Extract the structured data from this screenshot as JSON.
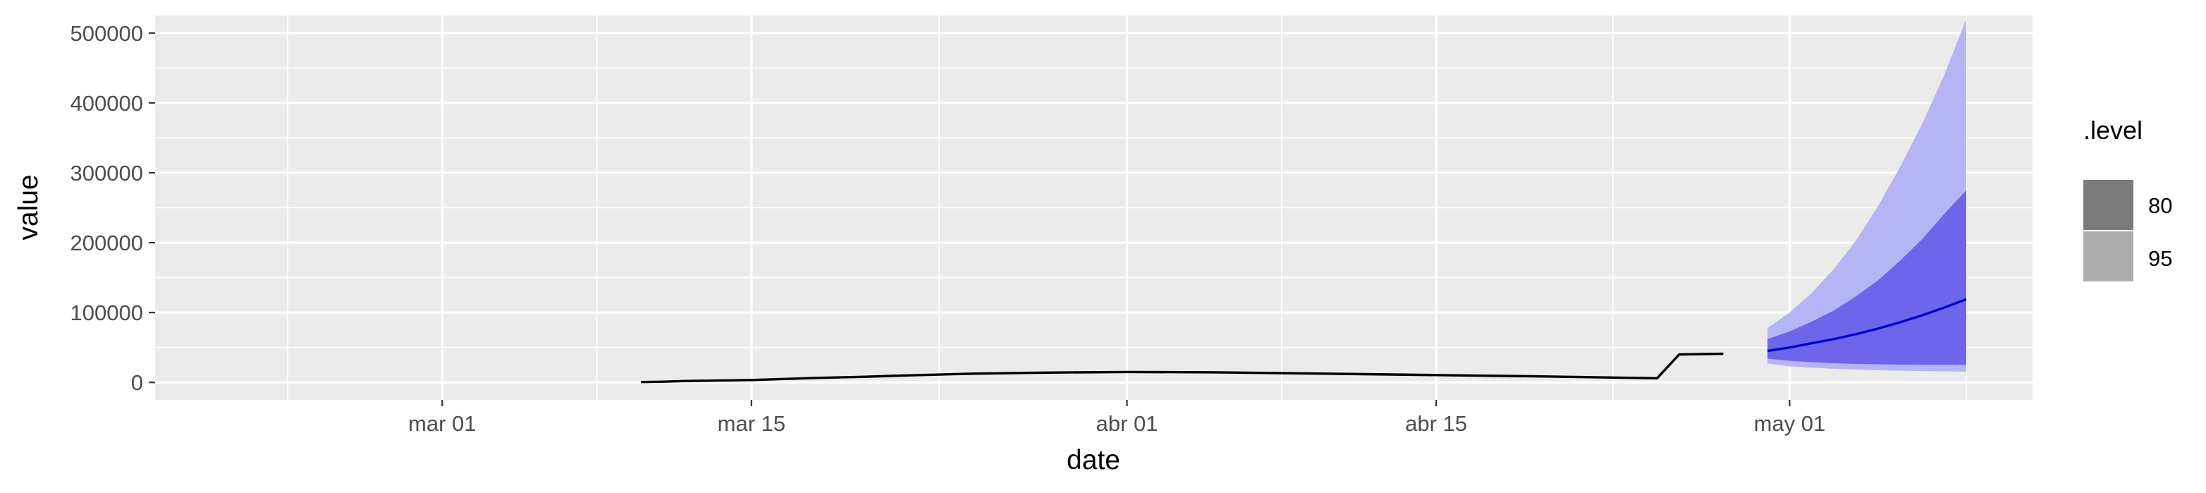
{
  "chart_data": {
    "type": "line",
    "xlabel": "date",
    "ylabel": "value",
    "xlim": [
      "2020-02-17",
      "2020-05-12"
    ],
    "ylim": [
      -25000,
      525000
    ],
    "x_ticks": [
      {
        "date": "2020-03-01",
        "label": "mar 01"
      },
      {
        "date": "2020-03-15",
        "label": "mar 15"
      },
      {
        "date": "2020-04-01",
        "label": "abr 01"
      },
      {
        "date": "2020-04-15",
        "label": "abr 15"
      },
      {
        "date": "2020-05-01",
        "label": "may 01"
      }
    ],
    "y_ticks": [
      {
        "value": 0,
        "label": "0"
      },
      {
        "value": 100000,
        "label": "100000"
      },
      {
        "value": 200000,
        "label": "200000"
      },
      {
        "value": 300000,
        "label": "300000"
      },
      {
        "value": 400000,
        "label": "400000"
      },
      {
        "value": 500000,
        "label": "500000"
      }
    ],
    "grid": true,
    "legend": {
      "title": ".level",
      "position": "right",
      "entries": [
        {
          "label": "80",
          "color": "#7a7a7a"
        },
        {
          "label": "95",
          "color": "#adadad"
        }
      ]
    },
    "observed": {
      "color": "#000000",
      "x": [
        "2020-03-10",
        "2020-03-11",
        "2020-03-12",
        "2020-03-13",
        "2020-03-14",
        "2020-03-15",
        "2020-03-16",
        "2020-03-17",
        "2020-03-18",
        "2020-03-20",
        "2020-03-22",
        "2020-03-25",
        "2020-03-28",
        "2020-04-01",
        "2020-04-05",
        "2020-04-10",
        "2020-04-15",
        "2020-04-20",
        "2020-04-24",
        "2020-04-25",
        "2020-04-26",
        "2020-04-27",
        "2020-04-28"
      ],
      "y": [
        500,
        1000,
        2000,
        2500,
        3000,
        3500,
        4500,
        5500,
        6500,
        8000,
        10000,
        12500,
        14000,
        15000,
        14500,
        12500,
        10500,
        8500,
        6500,
        6000,
        40000,
        40500,
        41000
      ]
    },
    "forecast": {
      "mean_color": "#0000cc",
      "x": [
        "2020-04-30",
        "2020-05-01",
        "2020-05-02",
        "2020-05-03",
        "2020-05-04",
        "2020-05-05",
        "2020-05-06",
        "2020-05-07",
        "2020-05-08",
        "2020-05-09"
      ],
      "mean": [
        45000,
        50000,
        56000,
        62000,
        69000,
        77000,
        86000,
        96000,
        107000,
        119000
      ],
      "intervals": [
        {
          "level": "80",
          "color": "#6d66ea",
          "lower": [
            34000,
            31000,
            29000,
            27500,
            26500,
            26000,
            25500,
            25300,
            25200,
            25100
          ],
          "upper": [
            62000,
            73000,
            87000,
            103000,
            123000,
            146000,
            174000,
            205000,
            241000,
            275000
          ]
        },
        {
          "level": "95",
          "color": "#b6b5f4",
          "lower": [
            27000,
            23000,
            21000,
            19500,
            18500,
            17500,
            16800,
            16300,
            15900,
            15500
          ],
          "upper": [
            78000,
            100000,
            128000,
            162000,
            203000,
            252000,
            308000,
            370000,
            440000,
            520000
          ]
        }
      ]
    }
  }
}
